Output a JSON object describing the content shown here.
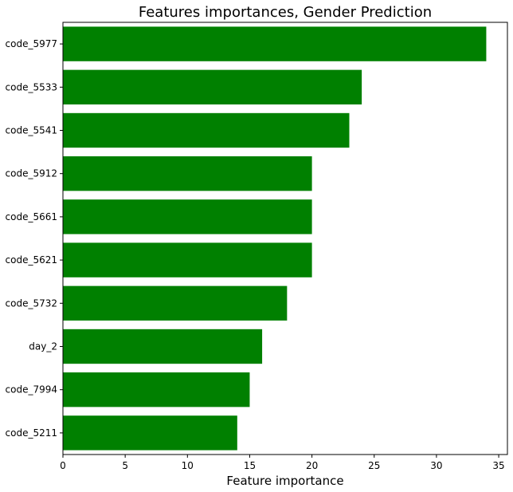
{
  "chart_data": {
    "type": "bar",
    "orientation": "horizontal",
    "title": "Features importances, Gender Prediction",
    "xlabel": "Feature importance",
    "ylabel": "",
    "categories": [
      "code_5977",
      "code_5533",
      "code_5541",
      "code_5912",
      "code_5661",
      "code_5621",
      "code_5732",
      "day_2",
      "code_7994",
      "code_5211"
    ],
    "values": [
      34,
      24,
      23,
      20,
      20,
      20,
      18,
      16,
      15,
      14
    ],
    "xlim": [
      0,
      35.7
    ],
    "xticks": [
      0,
      5,
      10,
      15,
      20,
      25,
      30,
      35
    ],
    "grid": false,
    "legend": "none",
    "bar_color": "#008000"
  }
}
